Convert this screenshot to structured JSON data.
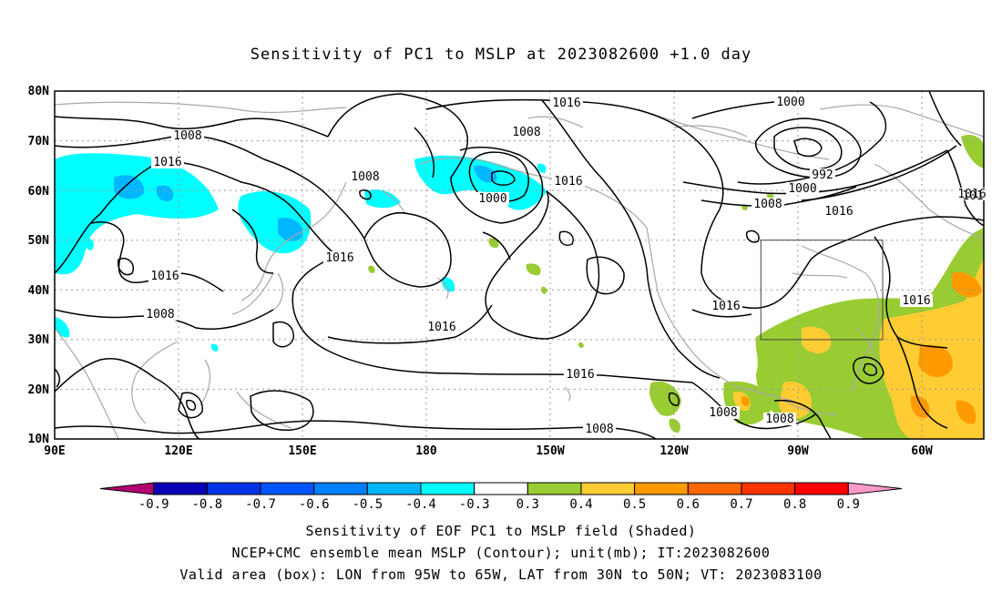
{
  "title": "Sensitivity of PC1 to MSLP at 2023082600 +1.0 day",
  "lat_labels": [
    "80N",
    "70N",
    "60N",
    "50N",
    "40N",
    "30N",
    "20N",
    "10N"
  ],
  "lon_labels": [
    "90E",
    "120E",
    "150E",
    "180",
    "150W",
    "120W",
    "90W",
    "60W"
  ],
  "contour_labels": [
    "1016",
    "1016",
    "1008",
    "1008",
    "1008",
    "1000",
    "1016",
    "992",
    "1000",
    "1008",
    "1016",
    "1016",
    "1016",
    "1016",
    "1008",
    "1008",
    "1016",
    "1008",
    "1008",
    "1016",
    "1016",
    "1016",
    "1000",
    "1016",
    "101"
  ],
  "colorbar": {
    "labels": [
      "-0.9",
      "-0.8",
      "-0.7",
      "-0.6",
      "-0.5",
      "-0.4",
      "-0.3",
      "0.3",
      "0.4",
      "0.5",
      "0.6",
      "0.7",
      "0.8",
      "0.9"
    ],
    "colors": [
      "#b3006e",
      "#0a00b4",
      "#0033e6",
      "#0055ff",
      "#007fff",
      "#00b6ff",
      "#00ffff",
      "#ffffff",
      "#99cc33",
      "#ffcc33",
      "#ff9900",
      "#ff6600",
      "#ff3300",
      "#ff0000",
      "#ff99cc"
    ]
  },
  "valid_box": {
    "lon_min": -95,
    "lon_max": -65,
    "lat_min": 30,
    "lat_max": 50
  },
  "captions": {
    "line1": "Sensitivity of EOF PC1 to MSLP field (Shaded)",
    "line2": "NCEP+CMC ensemble mean MSLP (Contour); unit(mb); IT:2023082600",
    "line3": "Valid area (box): LON from 95W to 65W, LAT from 30N to 50N; VT: 2023083100"
  }
}
